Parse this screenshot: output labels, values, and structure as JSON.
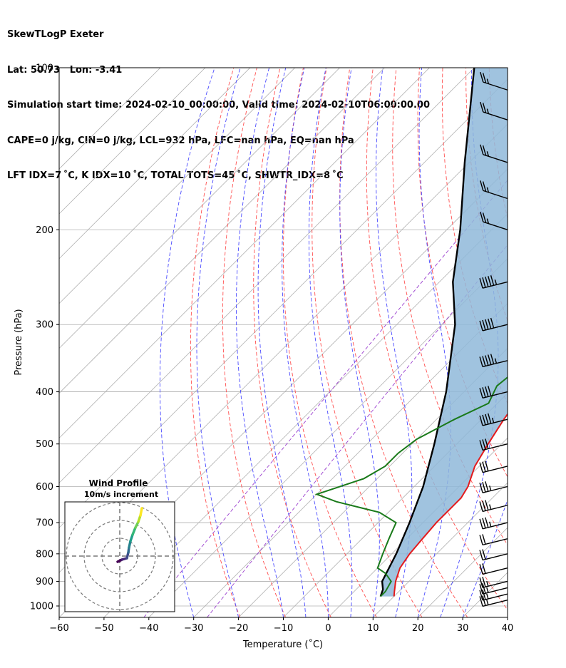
{
  "header": {
    "line1": "SkewTLogP Exeter",
    "line2": "Lat: 50.73   Lon: -3.41",
    "line3": "Simulation start time: 2024-02-10_00:00:00, Valid time: 2024-02-10T06:00:00.00",
    "line4": "CAPE=0 j/kg, CIN=0 j/kg, LCL=932 hPa, LFC=nan hPa, EQ=nan hPa",
    "line5": "LFT IDX=7 ˚C, K IDX=10 ˚C, TOTAL TOTS=45 ˚C, SHWTR_IDX=8 ˚C"
  },
  "chart_data": [
    {
      "type": "line",
      "subtype": "skew-T log-P diagram",
      "xlabel": "Temperature (˚C)",
      "ylabel": "Pressure (hPa)",
      "xlim": [
        -60,
        40
      ],
      "ylim": [
        1050,
        100
      ],
      "y_scale": "log",
      "x_ticks": [
        "−60",
        "−50",
        "−40",
        "−30",
        "−20",
        "−10",
        "0",
        "10",
        "20",
        "30",
        "40"
      ],
      "y_ticks": [
        "100",
        "200",
        "300",
        "400",
        "500",
        "600",
        "700",
        "800",
        "900",
        "1000"
      ],
      "grid": true,
      "series": [
        {
          "role": "temperature",
          "color": "#e41a1c",
          "points": [
            [
              10,
              960
            ],
            [
              9,
              940
            ],
            [
              7,
              900
            ],
            [
              5,
              850
            ],
            [
              4,
              800
            ],
            [
              3.5,
              750
            ],
            [
              3,
              700
            ],
            [
              3,
              650
            ],
            [
              3,
              630
            ],
            [
              2,
              600
            ],
            [
              -1,
              550
            ],
            [
              -3,
              500
            ],
            [
              -5,
              450
            ],
            [
              -6,
              420
            ],
            [
              -6,
              400
            ],
            [
              -7,
              380
            ],
            [
              -9,
              350
            ],
            [
              -12,
              320
            ],
            [
              -13,
              300
            ],
            [
              -13,
              280
            ],
            [
              -10,
              260
            ],
            [
              -4,
              240
            ],
            [
              3,
              220
            ],
            [
              7,
              200
            ],
            [
              11,
              180
            ],
            [
              15,
              160
            ],
            [
              19,
              140
            ],
            [
              21,
              125
            ],
            [
              24,
              110
            ],
            [
              25,
              100
            ]
          ]
        },
        {
          "role": "dewpoint",
          "color": "#1a7a1a",
          "points": [
            [
              7,
              960
            ],
            [
              7,
              940
            ],
            [
              6,
              900
            ],
            [
              3,
              870
            ],
            [
              0,
              850
            ],
            [
              -2,
              800
            ],
            [
              -4,
              750
            ],
            [
              -6,
              700
            ],
            [
              -12,
              670
            ],
            [
              -24,
              640
            ],
            [
              -30,
              620
            ],
            [
              -23,
              580
            ],
            [
              -21,
              550
            ],
            [
              -21,
              520
            ],
            [
              -20,
              490
            ],
            [
              -16,
              450
            ],
            [
              -12,
              420
            ],
            [
              -14,
              390
            ],
            [
              -13,
              360
            ],
            [
              -13,
              340
            ],
            [
              -15,
              300
            ],
            [
              -14,
              280
            ],
            [
              -16,
              260
            ],
            [
              -21,
              240
            ],
            [
              -23,
              215
            ],
            [
              -19,
              180
            ],
            [
              -15,
              160
            ],
            [
              -10,
              140
            ],
            [
              -4,
              120
            ],
            [
              1,
              100
            ]
          ]
        },
        {
          "role": "parcel profile",
          "color": "#000000",
          "points": [
            [
              7,
              960
            ],
            [
              6,
              932
            ],
            [
              4,
              900
            ],
            [
              1,
              800
            ],
            [
              -3,
              700
            ],
            [
              -8,
              600
            ],
            [
              -15,
              500
            ],
            [
              -24,
              400
            ],
            [
              -37,
              300
            ],
            [
              -47,
              250
            ],
            [
              -57,
              200
            ],
            [
              -71,
              150
            ],
            [
              -90,
              100
            ]
          ]
        }
      ],
      "shaded_region": {
        "between": [
          "temperature",
          "parcel profile"
        ],
        "color": "#8fb9d9"
      },
      "background_lines": {
        "dry_adiabats": {
          "color": "#ff5050",
          "style": "dashed",
          "theta_K": [
            250,
            260,
            270,
            280,
            290,
            300,
            310,
            320,
            330,
            340,
            350,
            360,
            370,
            380,
            390,
            400,
            410,
            420,
            430,
            440,
            450,
            460
          ]
        },
        "moist_adiabats": {
          "color": "#4a4aff",
          "style": "dashed",
          "start_T_C": [
            -30,
            -20,
            -10,
            -5,
            0,
            5,
            10,
            15,
            20,
            25,
            30
          ]
        },
        "mixing_ratio": {
          "color": "#9b3fcf",
          "style": "dashed",
          "g_per_kg": [
            0.1,
            0.4
          ]
        },
        "isotherms": {
          "color": "#b0b0b0",
          "style": "solid"
        }
      },
      "wind_barbs": [
        {
          "p": 975,
          "speed_kt": 15
        },
        {
          "p": 950,
          "speed_kt": 15
        },
        {
          "p": 925,
          "speed_kt": 15
        },
        {
          "p": 900,
          "speed_kt": 15
        },
        {
          "p": 850,
          "speed_kt": 20
        },
        {
          "p": 800,
          "speed_kt": 20
        },
        {
          "p": 750,
          "speed_kt": 20
        },
        {
          "p": 700,
          "speed_kt": 25
        },
        {
          "p": 650,
          "speed_kt": 25
        },
        {
          "p": 600,
          "speed_kt": 25
        },
        {
          "p": 550,
          "speed_kt": 30
        },
        {
          "p": 500,
          "speed_kt": 30
        },
        {
          "p": 450,
          "speed_kt": 35
        },
        {
          "p": 400,
          "speed_kt": 40
        },
        {
          "p": 350,
          "speed_kt": 45
        },
        {
          "p": 300,
          "speed_kt": 50
        },
        {
          "p": 250,
          "speed_kt": 45
        },
        {
          "p": 200,
          "speed_kt": 15
        },
        {
          "p": 175,
          "speed_kt": 15
        },
        {
          "p": 150,
          "speed_kt": 15
        },
        {
          "p": 125,
          "speed_kt": 15
        },
        {
          "p": 110,
          "speed_kt": 15
        }
      ]
    },
    {
      "type": "line",
      "subtype": "hodograph",
      "title": "Wind Profile",
      "subtitle": "10m/s increment",
      "rings": 3,
      "series": [
        {
          "role": "hodograph trace",
          "points": [
            [
              -0.3,
              -0.8
            ],
            [
              0.3,
              -0.5
            ],
            [
              1.0,
              -0.3
            ],
            [
              1.2,
              0.5
            ],
            [
              1.3,
              1.2
            ],
            [
              1.5,
              2.1
            ],
            [
              1.8,
              3.0
            ],
            [
              2.2,
              4.0
            ],
            [
              2.6,
              4.8
            ],
            [
              2.9,
              5.7
            ],
            [
              3.1,
              6.7
            ]
          ],
          "colors": [
            "#440154",
            "#482878",
            "#3e4989",
            "#31688e",
            "#26828e",
            "#1f9e89",
            "#35b779",
            "#6ece58",
            "#b5de2b",
            "#fde725"
          ]
        }
      ]
    }
  ]
}
